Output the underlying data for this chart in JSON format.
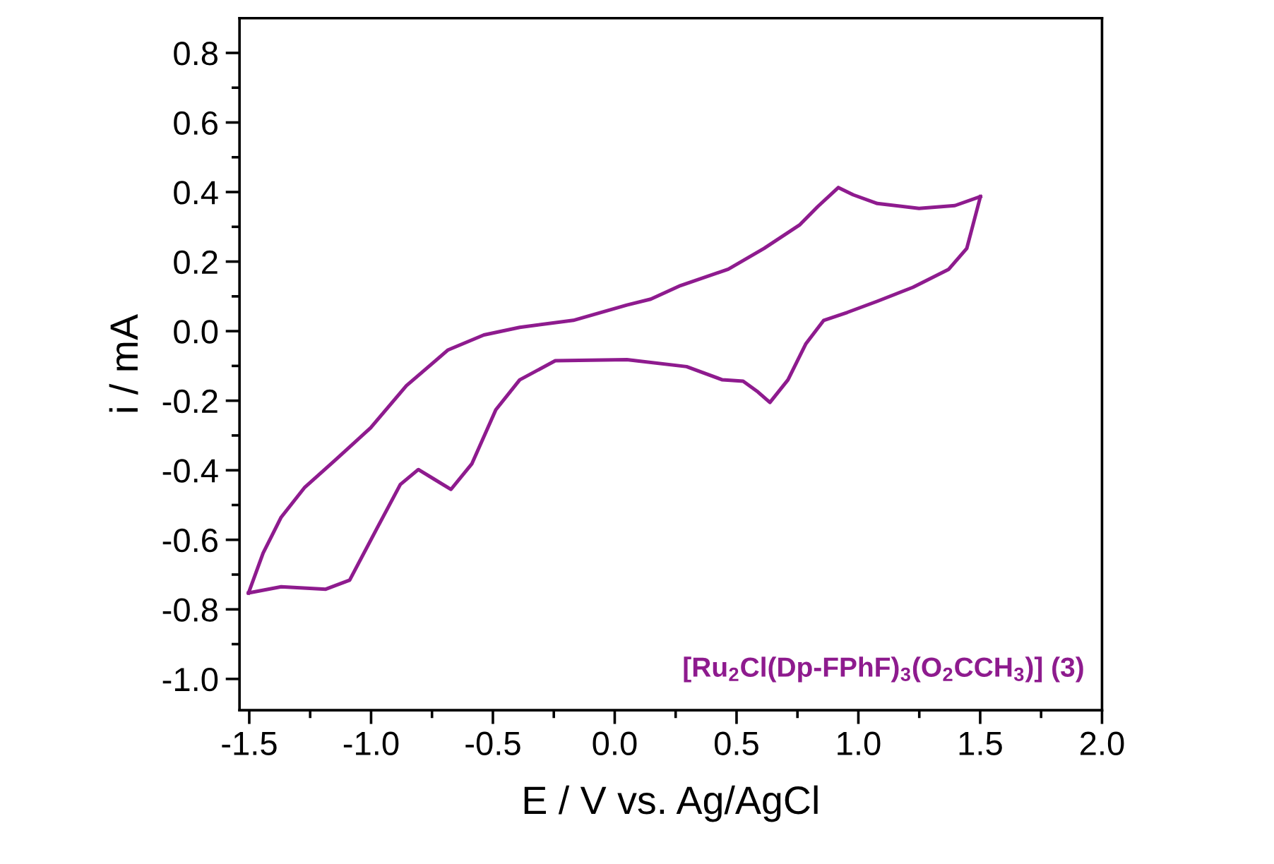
{
  "chart_data": {
    "type": "line",
    "xlabel": "E / V vs. Ag/AgCl",
    "ylabel": "i / mA",
    "annotations": [
      "[Ru$_{2}$Cl(Dp-FPhF)$_{3}$(O$_{2}$CCH$_{3}$)] (3)"
    ],
    "xlim": [
      -1.54,
      2.0
    ],
    "xticks": [
      {
        "value": -1.5,
        "label": "-1.5"
      },
      {
        "value": -1.25,
        "label": null
      },
      {
        "value": -1.0,
        "label": "-1.0"
      },
      {
        "value": -0.75,
        "label": null
      },
      {
        "value": -0.5,
        "label": "-0.5"
      },
      {
        "value": -0.25,
        "label": null
      },
      {
        "value": 0.0,
        "label": "0.0"
      },
      {
        "value": 0.25,
        "label": null
      },
      {
        "value": 0.5,
        "label": "0.5"
      },
      {
        "value": 0.75,
        "label": null
      },
      {
        "value": 1.0,
        "label": "1.0"
      },
      {
        "value": 1.25,
        "label": null
      },
      {
        "value": 1.5,
        "label": "1.5"
      },
      {
        "value": 1.75,
        "label": null
      },
      {
        "value": 2.0,
        "label": "2.0"
      }
    ],
    "ylim": [
      -1.09,
      0.9
    ],
    "yticks": [
      {
        "value": -1.0,
        "label": "-1.0"
      },
      {
        "value": -0.9,
        "label": null
      },
      {
        "value": -0.8,
        "label": "-0.8"
      },
      {
        "value": -0.7,
        "label": null
      },
      {
        "value": -0.6,
        "label": "-0.6"
      },
      {
        "value": -0.5,
        "label": null
      },
      {
        "value": -0.4,
        "label": "-0.4"
      },
      {
        "value": -0.3,
        "label": null
      },
      {
        "value": -0.2,
        "label": "-0.2"
      },
      {
        "value": -0.1,
        "label": null
      },
      {
        "value": 0.0,
        "label": "0.0"
      },
      {
        "value": 0.1,
        "label": null
      },
      {
        "value": 0.2,
        "label": "0.2"
      },
      {
        "value": 0.3,
        "label": null
      },
      {
        "value": 0.4,
        "label": "0.4"
      },
      {
        "value": 0.5,
        "label": null
      },
      {
        "value": 0.6,
        "label": "0.6"
      },
      {
        "value": 0.7,
        "label": null
      },
      {
        "value": 0.8,
        "label": "0.8"
      }
    ],
    "grid": false,
    "legend": false,
    "marker": "none",
    "line_style": "solid",
    "series": [
      {
        "color": "#8e1b8e",
        "x": [
          -1.503,
          -1.443,
          -1.369,
          -1.272,
          -1.149,
          -1.002,
          -0.855,
          -0.684,
          -0.537,
          -0.39,
          -0.17,
          0.05,
          0.148,
          0.27,
          0.466,
          0.613,
          0.76,
          0.833,
          0.918,
          0.979,
          1.078,
          1.249,
          1.396,
          1.501
        ],
        "values": [
          -0.753,
          -0.638,
          -0.535,
          -0.449,
          -0.372,
          -0.278,
          -0.157,
          -0.054,
          -0.011,
          0.011,
          0.031,
          0.075,
          0.092,
          0.131,
          0.178,
          0.238,
          0.306,
          0.358,
          0.413,
          0.392,
          0.367,
          0.353,
          0.361,
          0.387
        ]
      },
      {
        "color": "#8e1b8e",
        "x": [
          1.501,
          1.445,
          1.371,
          1.224,
          1.078,
          0.955,
          0.858,
          0.784,
          0.711,
          0.637,
          0.588,
          0.527,
          0.442,
          0.295,
          0.05,
          -0.244,
          -0.39,
          -0.488,
          -0.586,
          -0.672,
          -0.745,
          -0.806,
          -0.88,
          -0.978,
          -1.088,
          -1.186,
          -1.369,
          -1.503
        ],
        "values": [
          0.387,
          0.238,
          0.178,
          0.126,
          0.086,
          0.054,
          0.031,
          -0.037,
          -0.14,
          -0.205,
          -0.175,
          -0.144,
          -0.14,
          -0.102,
          -0.082,
          -0.085,
          -0.14,
          -0.226,
          -0.381,
          -0.455,
          -0.424,
          -0.398,
          -0.441,
          -0.57,
          -0.716,
          -0.742,
          -0.735,
          -0.753
        ]
      }
    ]
  }
}
